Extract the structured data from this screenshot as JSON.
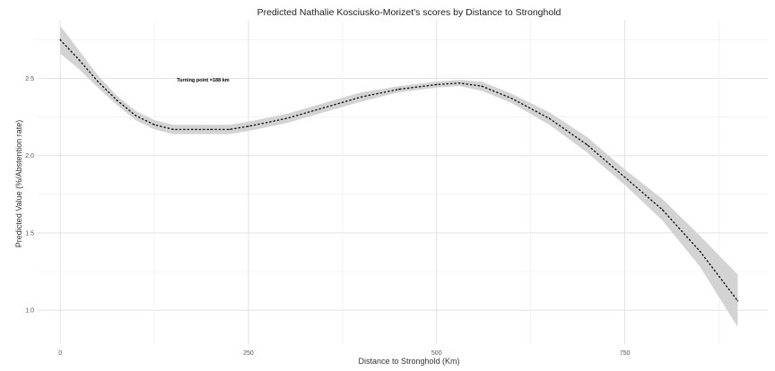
{
  "chart_data": {
    "type": "line",
    "title": "Predicted Nathalie Kosciusko-Morizet's scores by Distance to Stronghold",
    "xlabel": "Distance to Stronghold (Km)",
    "ylabel": "Predicted Value (%/Abstention rate)",
    "xlim": [
      -30,
      940
    ],
    "ylim": [
      0.78,
      2.88
    ],
    "x_ticks": [
      0,
      250,
      500,
      750
    ],
    "y_ticks": [
      1.0,
      1.5,
      2.0,
      2.5
    ],
    "x_tick_labels": [
      "0",
      "250",
      "500",
      "750"
    ],
    "y_tick_labels": [
      "1.0",
      "1.5",
      "2.0",
      "2.5"
    ],
    "grid": true,
    "annotation": {
      "text": "Turning point =188 km",
      "x": 155,
      "y": 2.49
    },
    "series": [
      {
        "style": "dotted",
        "x": [
          0,
          25,
          50,
          75,
          100,
          125,
          150,
          175,
          200,
          225,
          250,
          300,
          350,
          400,
          450,
          500,
          530,
          560,
          600,
          650,
          700,
          750,
          800,
          850,
          900
        ],
        "y": [
          2.75,
          2.62,
          2.48,
          2.36,
          2.26,
          2.2,
          2.17,
          2.17,
          2.17,
          2.17,
          2.19,
          2.24,
          2.31,
          2.38,
          2.43,
          2.46,
          2.47,
          2.45,
          2.37,
          2.24,
          2.07,
          1.86,
          1.65,
          1.38,
          1.06
        ]
      }
    ],
    "confidence_band": {
      "x": [
        0,
        25,
        50,
        75,
        100,
        125,
        150,
        175,
        200,
        225,
        250,
        300,
        350,
        400,
        450,
        500,
        530,
        560,
        600,
        650,
        700,
        750,
        800,
        850,
        900
      ],
      "lower": [
        2.66,
        2.56,
        2.44,
        2.33,
        2.23,
        2.17,
        2.14,
        2.14,
        2.14,
        2.14,
        2.16,
        2.21,
        2.28,
        2.35,
        2.41,
        2.44,
        2.45,
        2.42,
        2.34,
        2.2,
        2.02,
        1.81,
        1.58,
        1.28,
        0.89
      ],
      "upper": [
        2.84,
        2.68,
        2.52,
        2.39,
        2.29,
        2.23,
        2.2,
        2.2,
        2.2,
        2.2,
        2.22,
        2.27,
        2.34,
        2.41,
        2.45,
        2.48,
        2.49,
        2.48,
        2.4,
        2.28,
        2.12,
        1.91,
        1.72,
        1.48,
        1.23
      ]
    }
  }
}
